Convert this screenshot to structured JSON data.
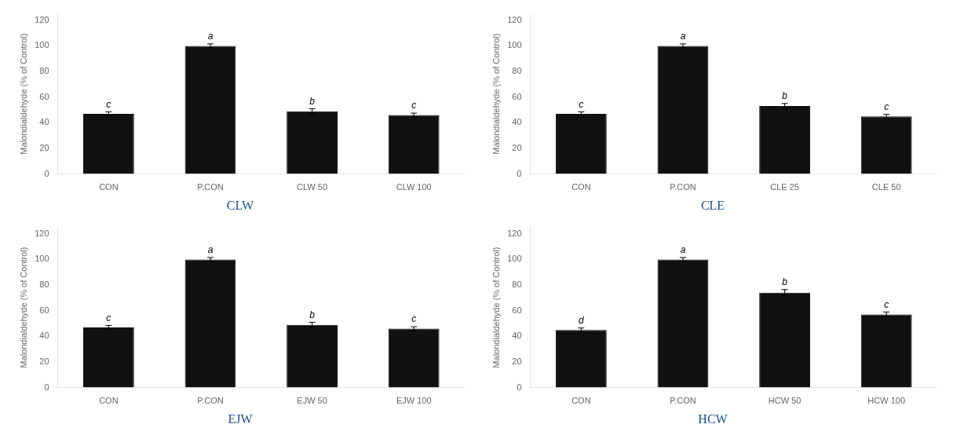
{
  "chart_data": [
    {
      "type": "bar",
      "title": "CLW",
      "categories": [
        "CON",
        "P.CON",
        "CLW 50",
        "CLW 100"
      ],
      "values": [
        47,
        100,
        49,
        46
      ],
      "errors": [
        1.5,
        1.5,
        2.0,
        1.5
      ],
      "annotations": [
        "c",
        "a",
        "b",
        "c"
      ],
      "ylabel": "Malondialdehyde (% of Control)",
      "color": "#111111",
      "ylim": [
        0,
        125
      ],
      "yticks": [
        0,
        20,
        40,
        60,
        80,
        100,
        120
      ],
      "grid": false
    },
    {
      "type": "bar",
      "title": "CLE",
      "categories": [
        "CON",
        "P.CON",
        "CLE 25",
        "CLE 50"
      ],
      "values": [
        47,
        100,
        53,
        45
      ],
      "errors": [
        1.5,
        1.5,
        2.0,
        1.5
      ],
      "annotations": [
        "c",
        "a",
        "b",
        "c"
      ],
      "ylabel": "Malondialdehyde (% of Control)",
      "color": "#111111",
      "ylim": [
        0,
        125
      ],
      "yticks": [
        0,
        20,
        40,
        60,
        80,
        100,
        120
      ],
      "grid": false
    },
    {
      "type": "bar",
      "title": "EJW",
      "categories": [
        "CON",
        "P.CON",
        "EJW 50",
        "EJW 100"
      ],
      "values": [
        47,
        100,
        49,
        46
      ],
      "errors": [
        1.5,
        1.5,
        2.0,
        1.5
      ],
      "annotations": [
        "c",
        "a",
        "b",
        "c"
      ],
      "ylabel": "Malondialdehyde (% of Control)",
      "color": "#111111",
      "ylim": [
        0,
        125
      ],
      "yticks": [
        0,
        20,
        40,
        60,
        80,
        100,
        120
      ],
      "grid": false
    },
    {
      "type": "bar",
      "title": "HCW",
      "categories": [
        "CON",
        "P.CON",
        "HCW 50",
        "HCW 100"
      ],
      "values": [
        45,
        100,
        74,
        57
      ],
      "errors": [
        1.5,
        1.5,
        2.5,
        2.0
      ],
      "annotations": [
        "d",
        "a",
        "b",
        "c"
      ],
      "ylabel": "Malondialdehyde (% of Control)",
      "color": "#111111",
      "ylim": [
        0,
        125
      ],
      "yticks": [
        0,
        20,
        40,
        60,
        80,
        100,
        120
      ],
      "grid": false
    }
  ]
}
